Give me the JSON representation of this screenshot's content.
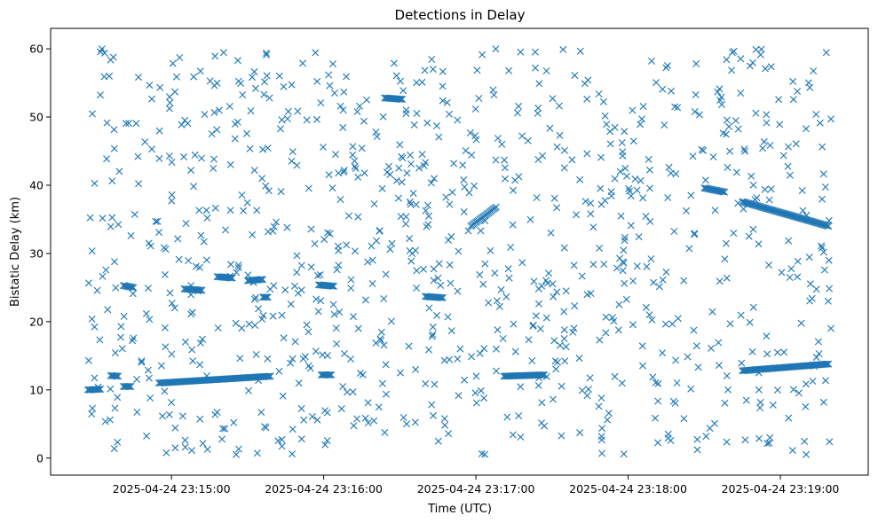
{
  "chart_data": {
    "type": "scatter",
    "title": "Detections in Delay",
    "xlabel": "Time (UTC)",
    "ylabel": "Bistatic Delay (km)",
    "x_time_range": [
      "2025-04-24 23:14:27",
      "2025-04-24 23:19:20"
    ],
    "ylim": [
      -2.5,
      63
    ],
    "xticks": [
      "2025-04-24 23:15:00",
      "2025-04-24 23:16:00",
      "2025-04-24 23:17:00",
      "2025-04-24 23:18:00",
      "2025-04-24 23:19:00"
    ],
    "yticks": [
      0,
      10,
      20,
      30,
      40,
      50,
      60
    ],
    "marker": "x",
    "color": "#1f77b4",
    "grid": false,
    "tracks": [
      {
        "start": [
          "2025-04-24 23:14:27",
          10.0
        ],
        "end": [
          "2025-04-24 23:14:32",
          10.1
        ]
      },
      {
        "start": [
          "2025-04-24 23:14:36",
          12.1
        ],
        "end": [
          "2025-04-24 23:14:39",
          12.0
        ]
      },
      {
        "start": [
          "2025-04-24 23:14:41",
          10.5
        ],
        "end": [
          "2025-04-24 23:14:44",
          10.5
        ]
      },
      {
        "start": [
          "2025-04-24 23:14:41",
          25.3
        ],
        "end": [
          "2025-04-24 23:14:45",
          25.0
        ]
      },
      {
        "start": [
          "2025-04-24 23:14:55",
          11.0
        ],
        "end": [
          "2025-04-24 23:15:39",
          12.0
        ]
      },
      {
        "start": [
          "2025-04-24 23:15:05",
          24.8
        ],
        "end": [
          "2025-04-24 23:15:12",
          24.6
        ]
      },
      {
        "start": [
          "2025-04-24 23:15:18",
          26.6
        ],
        "end": [
          "2025-04-24 23:15:24",
          26.4
        ]
      },
      {
        "start": [
          "2025-04-24 23:15:30",
          26.0
        ],
        "end": [
          "2025-04-24 23:15:36",
          26.2
        ]
      },
      {
        "start": [
          "2025-04-24 23:15:36",
          23.6
        ],
        "end": [
          "2025-04-24 23:15:38",
          23.6
        ]
      },
      {
        "start": [
          "2025-04-24 23:15:58",
          25.4
        ],
        "end": [
          "2025-04-24 23:16:04",
          25.2
        ]
      },
      {
        "start": [
          "2025-04-24 23:15:59",
          12.2
        ],
        "end": [
          "2025-04-24 23:16:03",
          12.2
        ]
      },
      {
        "start": [
          "2025-04-24 23:16:24",
          52.8
        ],
        "end": [
          "2025-04-24 23:16:31",
          52.6
        ]
      },
      {
        "start": [
          "2025-04-24 23:16:40",
          23.7
        ],
        "end": [
          "2025-04-24 23:16:47",
          23.5
        ]
      },
      {
        "start": [
          "2025-04-24 23:16:58",
          34.0
        ],
        "end": [
          "2025-04-24 23:17:08",
          36.8
        ]
      },
      {
        "start": [
          "2025-04-24 23:17:11",
          12.0
        ],
        "end": [
          "2025-04-24 23:17:27",
          12.2
        ]
      },
      {
        "start": [
          "2025-04-24 23:18:30",
          39.6
        ],
        "end": [
          "2025-04-24 23:18:38",
          39.0
        ]
      },
      {
        "start": [
          "2025-04-24 23:18:45",
          37.6
        ],
        "end": [
          "2025-04-24 23:19:19",
          34.0
        ]
      },
      {
        "start": [
          "2025-04-24 23:18:45",
          12.8
        ],
        "end": [
          "2025-04-24 23:19:19",
          13.8
        ]
      }
    ]
  }
}
